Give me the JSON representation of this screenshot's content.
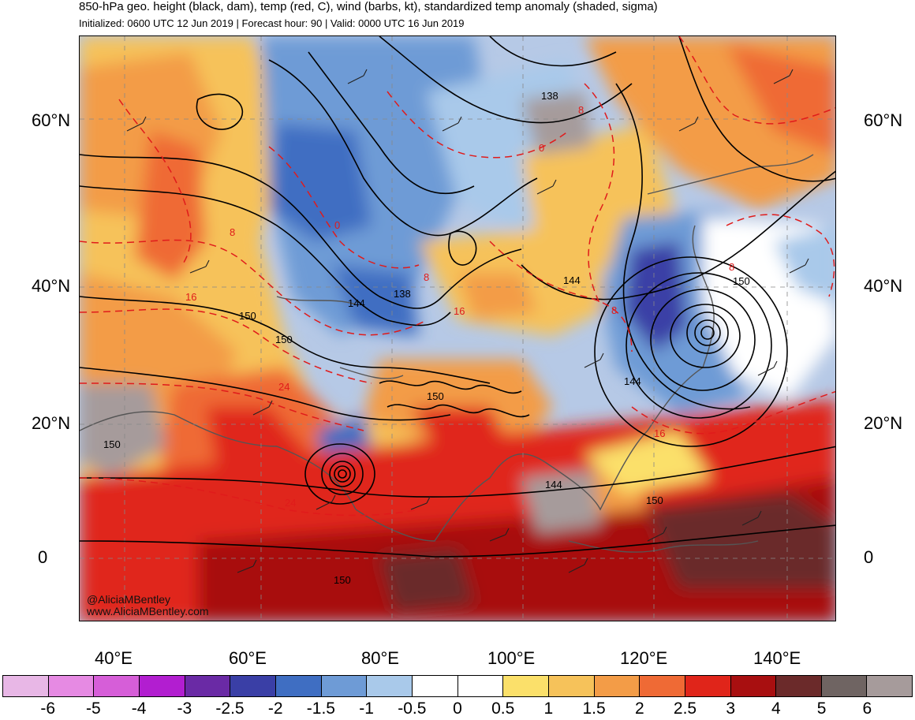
{
  "header": {
    "title": "850-hPa geo. height (black, dam), temp (red, C), wind (barbs, kt), standardized temp anomaly (shaded, sigma)",
    "subtitle": "Initialized: 0600 UTC 12 Jun 2019 | Forecast hour: 90 | Valid: 0000 UTC 16 Jun 2019"
  },
  "axes": {
    "lat_labels": [
      "60°N",
      "40°N",
      "20°N",
      "0"
    ],
    "lon_labels": [
      "40°E",
      "60°E",
      "80°E",
      "100°E",
      "120°E",
      "140°E"
    ]
  },
  "height_contour_labels": [
    "138",
    "144",
    "138",
    "150",
    "150",
    "144",
    "150",
    "144",
    "144",
    "150",
    "150",
    "150",
    "150"
  ],
  "temp_contour_labels": [
    "8",
    "0",
    "0",
    "8",
    "8",
    "16",
    "16",
    "24",
    "24",
    "8",
    "8",
    "16"
  ],
  "colorbar": {
    "labels": [
      "-6",
      "-5",
      "-4",
      "-3",
      "-2.5",
      "-2",
      "-1.5",
      "-1",
      "-0.5",
      "0",
      "0.5",
      "1",
      "1.5",
      "2",
      "2.5",
      "3",
      "4",
      "5",
      "6"
    ],
    "colors": [
      "#e8b7e6",
      "#e68ae3",
      "#d65ed8",
      "#b21ed0",
      "#6a2aa5",
      "#3a3fa6",
      "#3f6ec2",
      "#6e9bd6",
      "#a9c9ea",
      "#ffffff",
      "#ffffff",
      "#fbe06a",
      "#f6c25a",
      "#f39c47",
      "#ef6a35",
      "#e0251a",
      "#a80f10",
      "#6b2a2a",
      "#6f6462",
      "#a69b9b"
    ]
  },
  "credits": {
    "handle": "@AliciaMBentley",
    "website": "www.AliciaMBentley.com"
  }
}
